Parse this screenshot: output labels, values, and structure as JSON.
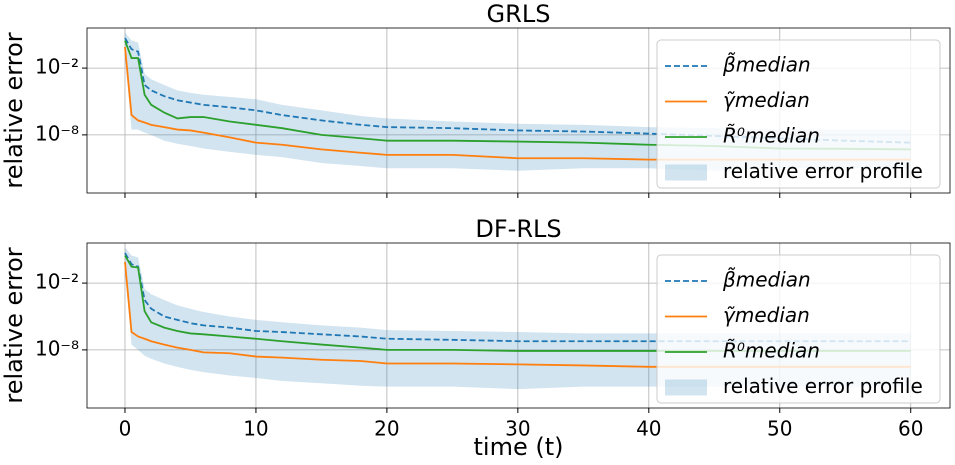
{
  "chart_data": [
    {
      "type": "line",
      "title": "GRLS",
      "ylabel": "relative error",
      "show_xtick_labels": false,
      "x": [
        0,
        0.5,
        1,
        1.5,
        2,
        3,
        4,
        5,
        6,
        8,
        10,
        12,
        15,
        18,
        20,
        25,
        30,
        35,
        40,
        45,
        50,
        55,
        60
      ],
      "xlim": [
        -2.9,
        63
      ],
      "xticks": [
        0,
        10,
        20,
        30,
        40,
        50,
        60
      ],
      "ylim": [
        6e-14,
        40
      ],
      "log_y": true,
      "yticks": [
        {
          "value": 0.01,
          "label": "10⁻²"
        },
        {
          "value": 1e-08,
          "label": "10⁻⁸"
        }
      ],
      "grid": true,
      "legend": "upper right",
      "series": [
        {
          "name": "β̃median",
          "color": "#1f77b4",
          "dash": true,
          "values": [
            5,
            0.5,
            0.3,
            0.0003,
            0.0001,
            3e-05,
            1.3e-05,
            8e-06,
            5e-06,
            3e-06,
            1.6e-06,
            6e-07,
            2e-07,
            8e-08,
            5e-08,
            4e-08,
            2.5e-08,
            2e-08,
            1.3e-08,
            8e-09,
            5e-09,
            3e-09,
            2e-09
          ]
        },
        {
          "name": "γ̃median",
          "color": "#ff7f0e",
          "values": [
            0.8,
            6e-07,
            2e-07,
            1.3e-07,
            8e-08,
            5e-08,
            3e-08,
            2.5e-08,
            1.6e-08,
            6e-09,
            2e-09,
            1.3e-09,
            5e-10,
            2.5e-10,
            1.6e-10,
            1.6e-10,
            8e-11,
            8e-11,
            6e-11,
            6e-11,
            6e-11,
            6e-11,
            6e-11
          ]
        },
        {
          "name": "R̃⁰median",
          "color": "#2ca02c",
          "values": [
            3,
            0.08,
            0.08,
            4e-05,
            5e-06,
            1e-06,
            3e-07,
            4e-07,
            4e-07,
            1.6e-07,
            8e-08,
            4e-08,
            1e-08,
            5e-09,
            3e-09,
            3e-09,
            2.5e-09,
            2e-09,
            1.3e-09,
            1e-09,
            6e-10,
            5.6e-10,
            5e-10
          ]
        },
        {
          "name": "relative error profile",
          "color": "#1f77b4",
          "band": true,
          "upper": [
            16,
            3,
            2,
            0.003,
            0.001,
            0.0003,
            0.0001,
            6e-05,
            4e-05,
            2.5e-05,
            1.6e-05,
            5e-06,
            1.6e-06,
            5e-07,
            3e-07,
            1.6e-07,
            1e-07,
            8e-08,
            5e-08,
            4e-08,
            3e-08,
            3e-08,
            3e-08
          ],
          "lower": [
            0.1,
            3e-08,
            3e-08,
            1.6e-08,
            1e-08,
            3e-09,
            1.6e-09,
            1e-09,
            6e-10,
            3e-10,
            1.6e-10,
            1e-10,
            3e-11,
            1.6e-11,
            1e-11,
            1e-11,
            6e-12,
            1e-11,
            1e-11,
            6e-12,
            1e-11,
            1e-11,
            1e-11
          ]
        }
      ]
    },
    {
      "type": "line",
      "title": "DF-RLS",
      "ylabel": "relative error",
      "xlabel": "time (t)",
      "show_xtick_labels": true,
      "x": [
        0,
        0.5,
        1,
        1.5,
        2,
        3,
        4,
        5,
        6,
        8,
        10,
        12,
        15,
        18,
        20,
        25,
        30,
        35,
        40,
        45,
        50,
        55,
        60
      ],
      "xlim": [
        -2.9,
        63
      ],
      "xticks": [
        0,
        10,
        20,
        30,
        40,
        50,
        60
      ],
      "ylim": [
        6e-14,
        40
      ],
      "log_y": true,
      "yticks": [
        {
          "value": 0.01,
          "label": "10⁻²"
        },
        {
          "value": 1e-08,
          "label": "10⁻⁸"
        }
      ],
      "grid": true,
      "legend": "upper right",
      "series": [
        {
          "name": "β̃median",
          "color": "#1f77b4",
          "dash": true,
          "values": [
            5,
            0.5,
            0.3,
            0.0003,
            5e-05,
            1e-05,
            5e-06,
            2.5e-06,
            1.6e-06,
            1e-06,
            5e-07,
            4e-07,
            2.5e-07,
            1.6e-07,
            1e-07,
            8e-08,
            6e-08,
            6e-08,
            6e-08,
            6e-08,
            6e-08,
            6e-08,
            6e-08
          ]
        },
        {
          "name": "γ̃median",
          "color": "#ff7f0e",
          "values": [
            0.8,
            4e-07,
            1.6e-07,
            1e-07,
            6e-08,
            3e-08,
            1.6e-08,
            1e-08,
            6e-09,
            5e-09,
            2.5e-09,
            2e-09,
            1.3e-09,
            1e-09,
            6e-10,
            6e-10,
            5e-10,
            4e-10,
            3e-10,
            3e-10,
            3e-10,
            3e-10,
            3e-10
          ]
        },
        {
          "name": "R̃⁰median",
          "color": "#2ca02c",
          "values": [
            3,
            0.3,
            0.25,
            3e-05,
            3e-06,
            1e-06,
            5e-07,
            3e-07,
            2.5e-07,
            1.6e-07,
            1e-07,
            6e-08,
            3e-08,
            1.6e-08,
            1e-08,
            1e-08,
            8e-09,
            8e-09,
            8e-09,
            8e-09,
            8e-09,
            8e-09,
            8e-09
          ]
        },
        {
          "name": "relative error profile",
          "color": "#1f77b4",
          "band": true,
          "upper": [
            16,
            3,
            2,
            0.003,
            0.001,
            0.0003,
            0.0001,
            5e-05,
            2.5e-05,
            1e-05,
            5e-06,
            3e-06,
            1.6e-06,
            1e-06,
            6e-07,
            5e-07,
            4e-07,
            3e-07,
            3e-07,
            3e-07,
            3e-07,
            3e-07,
            3e-07
          ],
          "lower": [
            0.1,
            3e-08,
            1e-08,
            3e-09,
            1.6e-09,
            6e-10,
            3e-10,
            1.6e-10,
            1e-10,
            5e-11,
            3e-11,
            1.6e-11,
            1e-11,
            6e-12,
            5e-12,
            5e-12,
            3e-12,
            5e-12,
            5e-12,
            5e-12,
            5e-12,
            5e-12,
            5e-12
          ]
        }
      ]
    }
  ]
}
